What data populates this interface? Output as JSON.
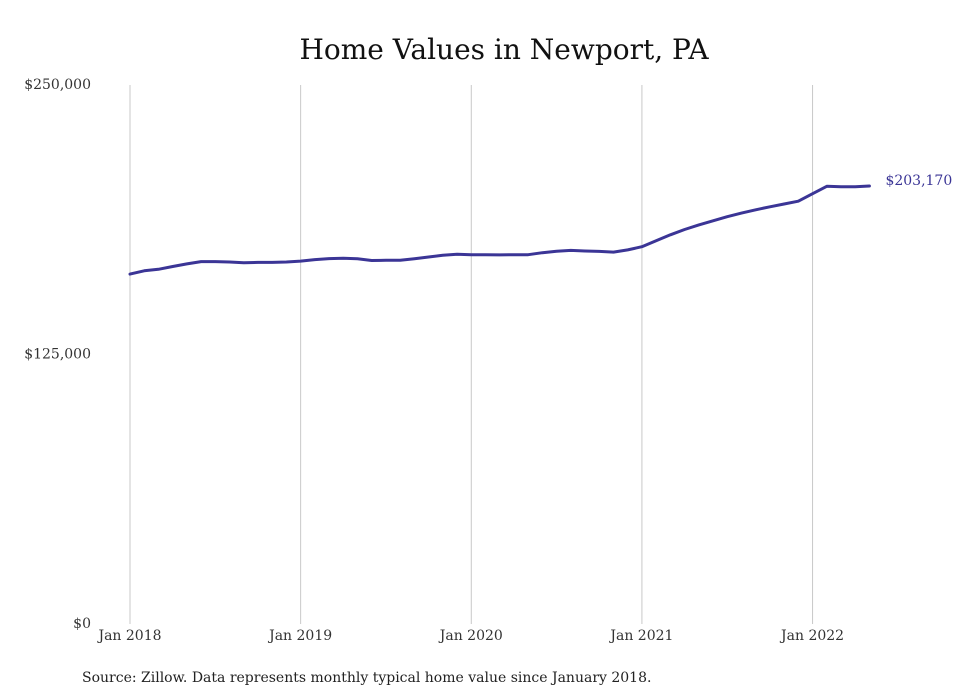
{
  "chart_data": {
    "type": "line",
    "title": "Home Values in Newport, PA",
    "source_note": "Source: Zillow. Data represents monthly typical home value since January 2018.",
    "xlabel": "",
    "ylabel": "",
    "ylim": [
      0,
      250000
    ],
    "grid": "vertical",
    "legend": "none",
    "color": "#3b3596",
    "y_ticks": [
      {
        "value": 0,
        "label": "$0"
      },
      {
        "value": 125000,
        "label": "$125,000"
      },
      {
        "value": 250000,
        "label": "$250,000"
      }
    ],
    "x_ticks": [
      {
        "value": "2018-01",
        "label": "Jan 2018"
      },
      {
        "value": "2019-01",
        "label": "Jan 2019"
      },
      {
        "value": "2020-01",
        "label": "Jan 2020"
      },
      {
        "value": "2021-01",
        "label": "Jan 2021"
      },
      {
        "value": "2022-01",
        "label": "Jan 2022"
      }
    ],
    "end_label": "$203,170",
    "series": [
      {
        "x": [
          "2018-01",
          "2018-02",
          "2018-03",
          "2018-04",
          "2018-05",
          "2018-06",
          "2018-07",
          "2018-08",
          "2018-09",
          "2018-10",
          "2018-11",
          "2018-12",
          "2019-01",
          "2019-02",
          "2019-03",
          "2019-04",
          "2019-05",
          "2019-06",
          "2019-07",
          "2019-08",
          "2019-09",
          "2019-10",
          "2019-11",
          "2019-12",
          "2020-01",
          "2020-02",
          "2020-03",
          "2020-04",
          "2020-05",
          "2020-06",
          "2020-07",
          "2020-08",
          "2020-09",
          "2020-10",
          "2020-11",
          "2020-12",
          "2021-01",
          "2021-02",
          "2021-03",
          "2021-04",
          "2021-05",
          "2021-06",
          "2021-07",
          "2021-08",
          "2021-09",
          "2021-10",
          "2021-11",
          "2021-12",
          "2022-01",
          "2022-02",
          "2022-03",
          "2022-04",
          "2022-05"
        ],
        "values": [
          162300,
          163800,
          164500,
          165800,
          167000,
          168100,
          168100,
          167900,
          167600,
          167700,
          167700,
          167900,
          168300,
          169000,
          169500,
          169600,
          169400,
          168600,
          168700,
          168700,
          169400,
          170200,
          171000,
          171500,
          171300,
          171300,
          171200,
          171300,
          171300,
          172200,
          172900,
          173300,
          173000,
          172800,
          172500,
          173500,
          175000,
          177800,
          180500,
          183000,
          185100,
          187000,
          188900,
          190600,
          192100,
          193500,
          194800,
          196100,
          199600,
          203000,
          202800,
          202800,
          203170
        ]
      }
    ]
  }
}
